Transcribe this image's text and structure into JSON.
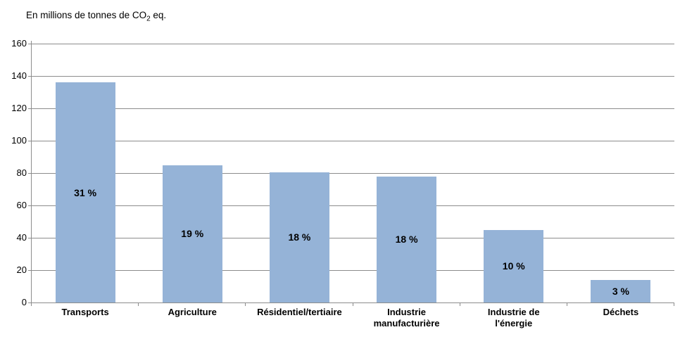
{
  "title": {
    "text": "En millions de tonnes de CO2 eq.",
    "prefix": "En millions de tonnes de CO",
    "subscript": "2",
    "suffix": " eq."
  },
  "chart_data": {
    "type": "bar",
    "title": "En millions de tonnes de CO2 eq.",
    "categories": [
      "Transports",
      "Agriculture",
      "Résidentiel/tertiaire",
      "Industrie\nmanufacturière",
      "Industrie de\nl'énergie",
      "Déchets"
    ],
    "values": [
      136,
      85,
      80.5,
      78,
      45,
      14
    ],
    "bar_labels": [
      "31 %",
      "19 %",
      "18 %",
      "18 %",
      "10 %",
      "3 %"
    ],
    "xlabel": "",
    "ylabel": "",
    "ylim": [
      0,
      160
    ],
    "yticks": [
      0,
      20,
      40,
      60,
      80,
      100,
      120,
      140,
      160
    ],
    "grid": true,
    "legend": "none",
    "bar_color": "#95B3D7",
    "grid_color": "#8C8C8C",
    "axis_color": "#8C8C8C",
    "text_color": "#000000"
  }
}
